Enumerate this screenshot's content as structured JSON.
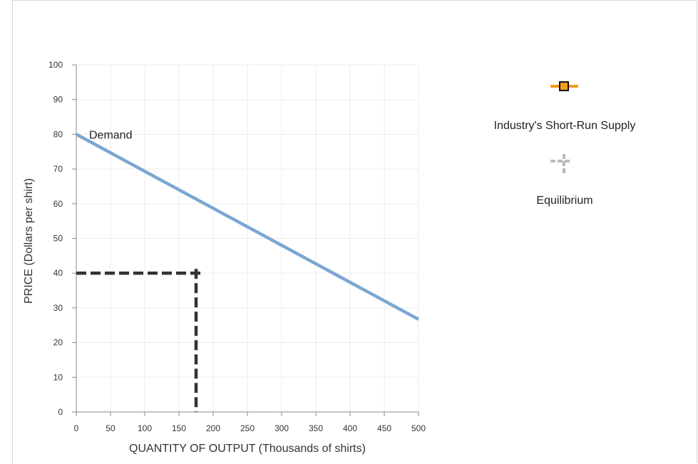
{
  "chart_data": {
    "type": "line",
    "xlabel": "QUANTITY OF OUTPUT (Thousands of shirts)",
    "ylabel": "PRICE (Dollars per shirt)",
    "xlim": [
      0,
      500
    ],
    "ylim": [
      0,
      100
    ],
    "x_ticks": [
      0,
      50,
      100,
      150,
      200,
      250,
      300,
      350,
      400,
      450,
      500
    ],
    "y_ticks": [
      0,
      10,
      20,
      30,
      40,
      50,
      60,
      70,
      80,
      90,
      100
    ],
    "grid": true,
    "series": [
      {
        "name": "Demand",
        "color": "#7ba7d1",
        "points": [
          [
            0,
            80
          ],
          [
            500,
            26.7
          ]
        ]
      }
    ],
    "equilibrium": {
      "x": 175,
      "y": 40,
      "color": "#333333"
    },
    "legend": {
      "placement": "right",
      "items": [
        {
          "label": "Industry's Short-Run Supply",
          "icon": "orange-square-line-icon",
          "color": "#f59c1a"
        },
        {
          "label": "Equilibrium",
          "icon": "gray-cross-icon",
          "color": "#bbbbbb"
        }
      ]
    }
  }
}
